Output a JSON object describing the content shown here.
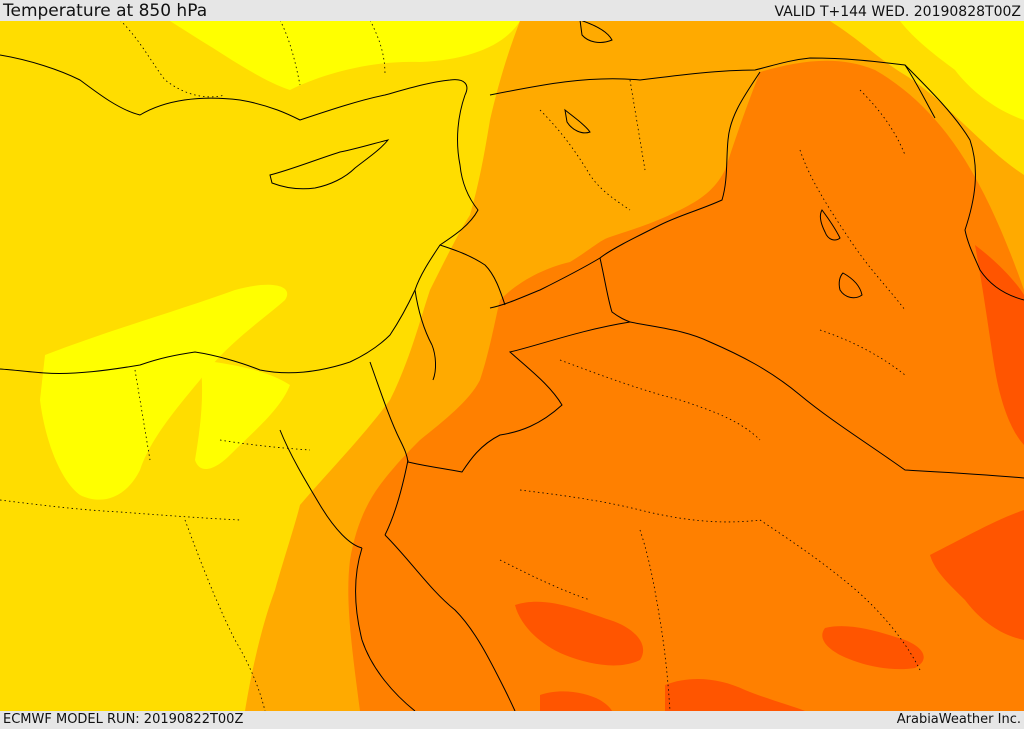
{
  "header": {
    "title": "Temperature at 850 hPa",
    "valid": "VALID T+144 WED. 20190828T00Z"
  },
  "footer": {
    "model_run": "ECMWF MODEL RUN: 20190822T00Z",
    "credit": "ArabiaWeather Inc."
  },
  "map": {
    "field": "temperature-850hPa",
    "palette": {
      "light-yellow": "#FFFF00",
      "yellow": "#FFDD00",
      "light-orange": "#FFAA00",
      "orange": "#FF8000",
      "dark-orange": "#FF5500"
    },
    "border_color": "#000000"
  }
}
